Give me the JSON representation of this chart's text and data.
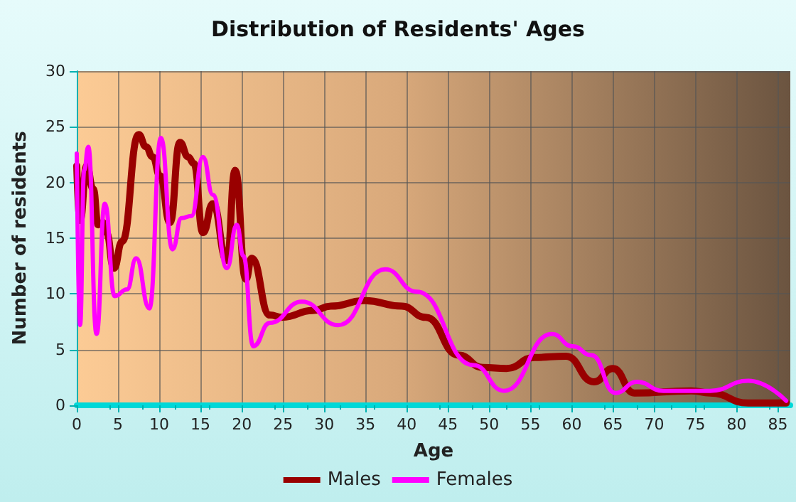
{
  "chart_data": {
    "type": "line",
    "title": "Distribution of Residents' Ages",
    "xlabel": "Age",
    "ylabel": "Number of residents",
    "xlim": [
      0,
      86.5
    ],
    "xticks": [
      0,
      5,
      10,
      15,
      20,
      25,
      30,
      35,
      40,
      45,
      50,
      55,
      60,
      65,
      70,
      75,
      80,
      85
    ],
    "ylim": [
      0,
      30
    ],
    "yticks": [
      0,
      5,
      10,
      15,
      20,
      25,
      30
    ],
    "grid": true,
    "legend": "bottom",
    "marker": "none",
    "line_style": "solid",
    "series": [
      {
        "name": "Males",
        "color": "#990000",
        "x": [
          0,
          0.4,
          1.2,
          2,
          2.6,
          3.2,
          3.6,
          4.5,
          5.5,
          7.5,
          8.4,
          9.2,
          10.1,
          11.3,
          12.5,
          13.5,
          14.2,
          15.3,
          16.5,
          18.2,
          19.2,
          20.5,
          21.2,
          23.4,
          24.9,
          28.6,
          30.8,
          34.9,
          39.4,
          42.3,
          46.3,
          49.2,
          52.1,
          55.5,
          59.3,
          62.7,
          65,
          67.6,
          74.5,
          76.8,
          81.4,
          86
        ],
        "values": [
          21.5,
          16.6,
          21.5,
          19.4,
          16.2,
          16.4,
          15.5,
          12.3,
          14.7,
          24.3,
          23.2,
          22.3,
          20.6,
          16.4,
          23.6,
          22.3,
          21.7,
          15.5,
          18.1,
          13,
          21.1,
          11.3,
          13.2,
          8.1,
          7.9,
          8.5,
          8.9,
          9.4,
          8.9,
          7.9,
          4.5,
          3.4,
          3.3,
          4.3,
          4.4,
          2.1,
          3.3,
          1.1,
          1.3,
          1.1,
          0.2,
          0.2
        ]
      },
      {
        "name": "Females",
        "color": "#ff00ff",
        "x": [
          0,
          0.4,
          0.9,
          1.4,
          2.4,
          3.4,
          4.6,
          6.1,
          7.2,
          8.8,
          10.2,
          11.6,
          12.7,
          13.9,
          15.3,
          16.5,
          18.2,
          19.4,
          20.2,
          21.4,
          23.4,
          27.3,
          31.7,
          37.4,
          41.2,
          48.1,
          51.8,
          57.6,
          60.1,
          62.4,
          65.3,
          67.9,
          71.1,
          76.8,
          81.4,
          86
        ],
        "values": [
          22.6,
          7.2,
          21.1,
          23.2,
          6.4,
          18.1,
          9.8,
          10.4,
          13.2,
          8.7,
          24,
          14,
          16.8,
          17,
          22.3,
          18.9,
          12.3,
          16.2,
          13.4,
          5.3,
          7.4,
          9.3,
          7.2,
          12.2,
          10.2,
          3.6,
          1.3,
          6.4,
          5.3,
          4.5,
          1.1,
          2.1,
          1.3,
          1.3,
          2.2,
          0.4
        ]
      }
    ]
  }
}
